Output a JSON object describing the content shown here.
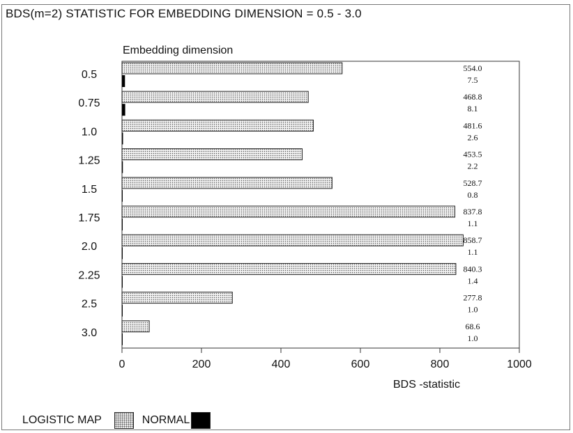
{
  "chart_data": {
    "type": "bar",
    "orientation": "horizontal",
    "title": "BDS(m=2) STATISTIC FOR EMBEDDING DIMENSION = 0.5 - 3.0",
    "category_axis_label": "Embedding dimension",
    "xlabel": "BDS -statistic",
    "xlim": [
      0,
      1000
    ],
    "xticks": [
      "0",
      "200",
      "400",
      "600",
      "800",
      "1000"
    ],
    "grid": false,
    "legend_position": "bottom-left",
    "categories": [
      "0.5",
      "0.75",
      "1.0",
      "1.25",
      "1.5",
      "1.75",
      "2.0",
      "2.25",
      "2.5",
      "3.0"
    ],
    "series": [
      {
        "name": "LOGISTIC MAP",
        "fill": "dotted",
        "color": "#bdbdbd",
        "values": [
          554.0,
          468.8,
          481.6,
          453.5,
          528.7,
          837.8,
          858.7,
          840.3,
          277.8,
          68.6
        ],
        "labels": [
          "554.0",
          "468.8",
          "481.6",
          "453.5",
          "528.7",
          "837.8",
          "858.7",
          "840.3",
          "277.8",
          "68.6"
        ]
      },
      {
        "name": "NORMAL",
        "fill": "solid",
        "color": "#000000",
        "values": [
          7.5,
          8.1,
          2.6,
          2.2,
          0.8,
          1.1,
          1.1,
          1.4,
          1.0,
          1.0
        ],
        "labels": [
          "7.5",
          "8.1",
          "2.6",
          "2.2",
          "0.8",
          "1.1",
          "1.1",
          "1.4",
          "1.0",
          "1.0"
        ]
      }
    ]
  }
}
